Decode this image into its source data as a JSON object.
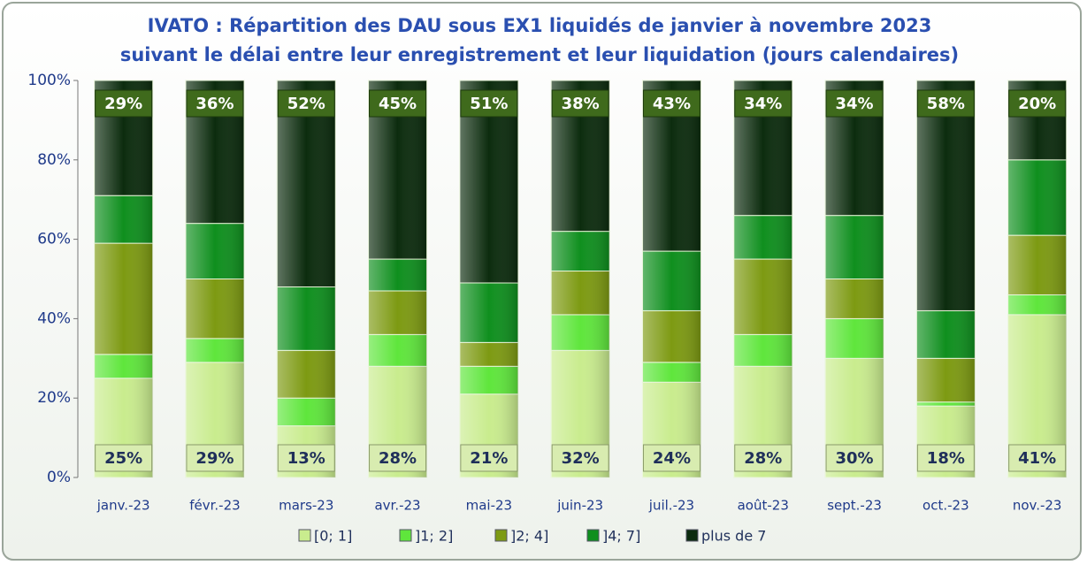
{
  "chart_data": {
    "type": "stacked_bar_100",
    "title": "IVATO : Répartition des DAU sous EX1 liquidés de janvier à novembre 2023",
    "subtitle": "suivant le délai entre leur enregistrement et leur liquidation (jours calendaires)",
    "categories": [
      "janv.-23",
      "févr.-23",
      "mars-23",
      "avr.-23",
      "mai-23",
      "juin-23",
      "juil.-23",
      "août-23",
      "sept.-23",
      "oct.-23",
      "nov.-23"
    ],
    "series": [
      {
        "name": "[0; 1]",
        "color": "#c9ec8e",
        "values": [
          25,
          29,
          13,
          28,
          21,
          32,
          24,
          28,
          30,
          18,
          41
        ],
        "value_labels": [
          "25%",
          "29%",
          "13%",
          "28%",
          "21%",
          "32%",
          "24%",
          "28%",
          "30%",
          "18%",
          "41%"
        ]
      },
      {
        "name": "]1; 2]",
        "color": "#5fe63c",
        "values": [
          6,
          6,
          7,
          8,
          7,
          9,
          5,
          8,
          10,
          1,
          5
        ]
      },
      {
        "name": "]2; 4]",
        "color": "#7d9a12",
        "values": [
          28,
          15,
          12,
          11,
          6,
          11,
          13,
          19,
          10,
          11,
          15
        ]
      },
      {
        "name": "]4; 7]",
        "color": "#0f8f1e",
        "values": [
          12,
          14,
          16,
          8,
          15,
          10,
          15,
          11,
          16,
          12,
          19
        ]
      },
      {
        "name": "plus de 7",
        "color": "#0c2c0e",
        "values": [
          29,
          36,
          52,
          45,
          51,
          38,
          43,
          34,
          34,
          58,
          20
        ],
        "value_labels": [
          "29%",
          "36%",
          "52%",
          "45%",
          "51%",
          "38%",
          "43%",
          "34%",
          "34%",
          "58%",
          "20%"
        ]
      }
    ],
    "ylim": [
      0,
      100
    ],
    "yticks": [
      {
        "value": 0,
        "label": "0%"
      },
      {
        "value": 20,
        "label": "20%"
      },
      {
        "value": 40,
        "label": "40%"
      },
      {
        "value": 60,
        "label": "60%"
      },
      {
        "value": 80,
        "label": "80%"
      },
      {
        "value": 100,
        "label": "100%"
      }
    ],
    "grid": false
  }
}
